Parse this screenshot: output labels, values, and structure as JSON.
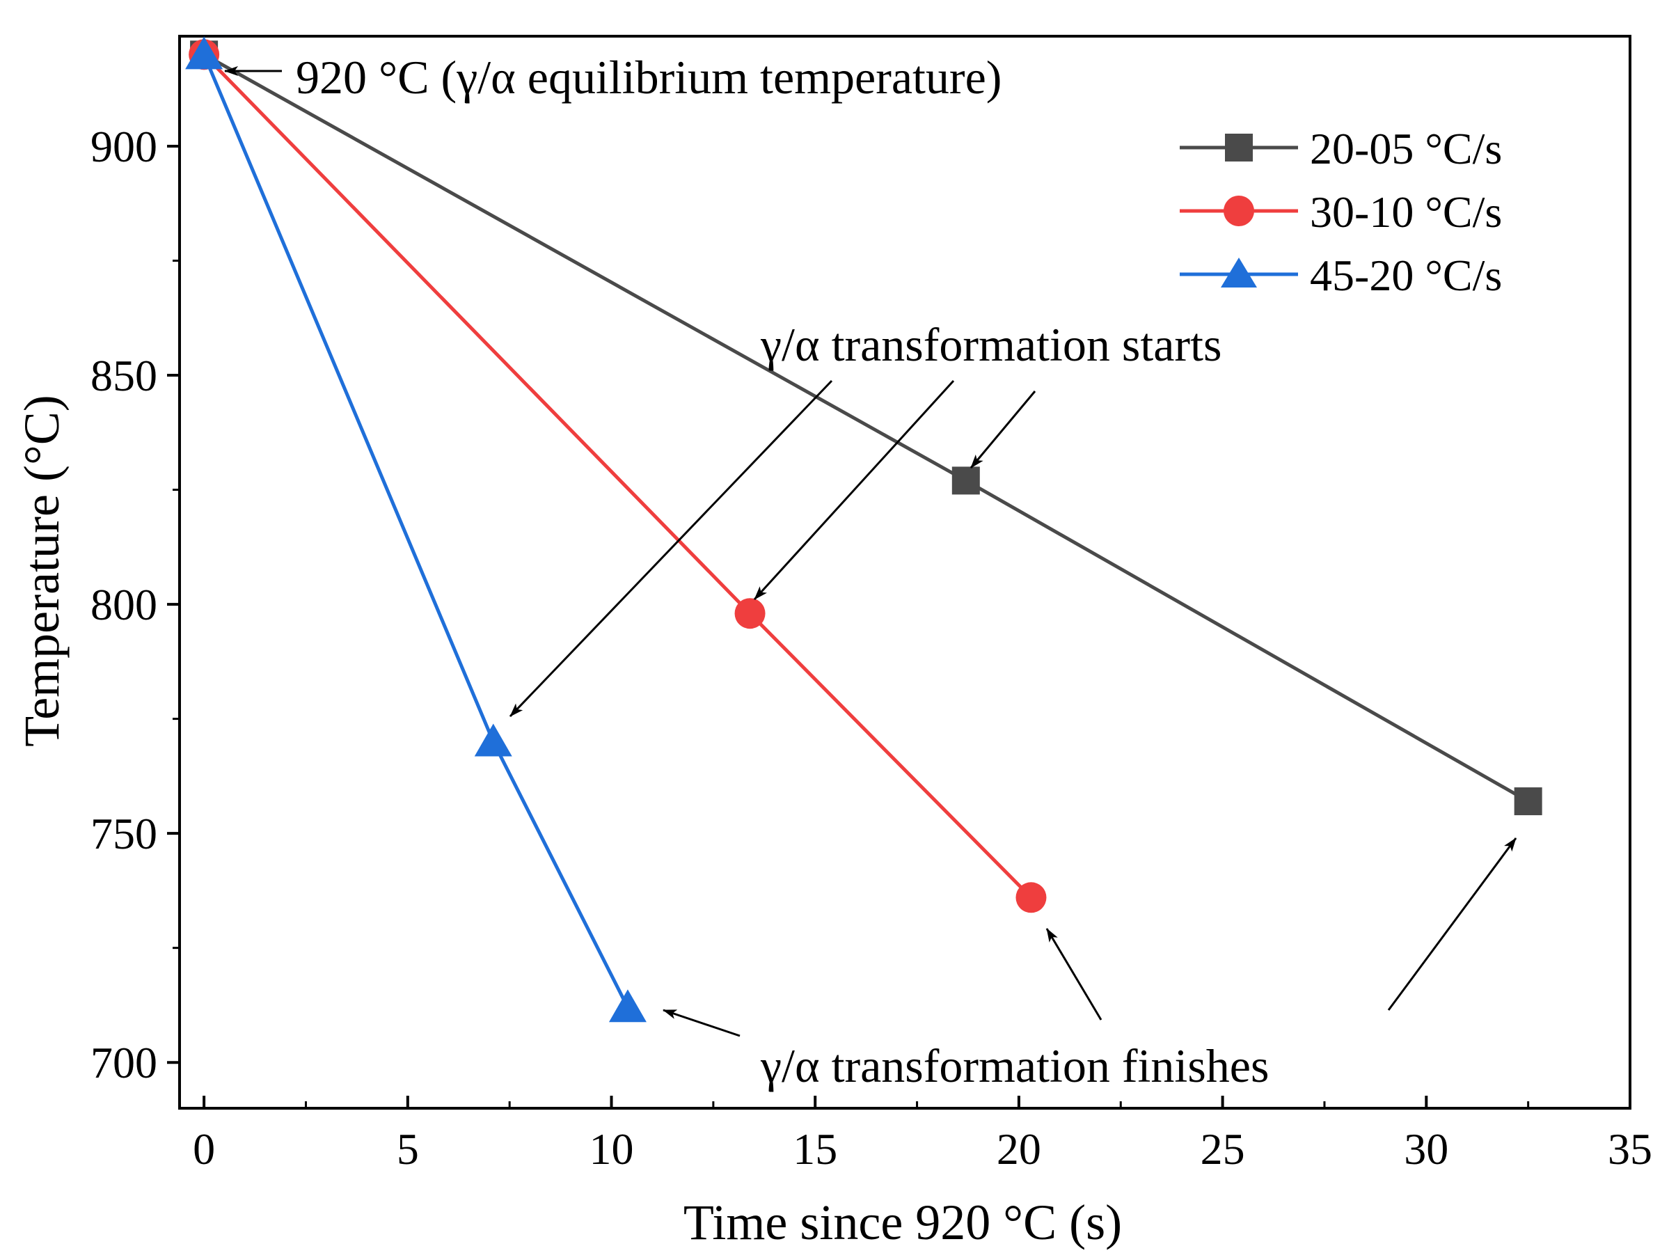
{
  "chart_data": {
    "type": "line",
    "title": "",
    "xlabel": "Time since 920 °C (s)",
    "ylabel": "Temperature (°C)",
    "xlim": [
      -0.6,
      35
    ],
    "ylim": [
      690,
      924
    ],
    "x_ticks": [
      0,
      5,
      10,
      15,
      20,
      25,
      30,
      35
    ],
    "x_tick_labels": [
      "0",
      "5",
      "10",
      "15",
      "20",
      "25",
      "30",
      "35"
    ],
    "x_minor_ticks": [
      2.5,
      7.5,
      12.5,
      17.5,
      22.5,
      27.5,
      32.5
    ],
    "y_ticks": [
      700,
      750,
      800,
      850,
      900
    ],
    "y_tick_labels": [
      "700",
      "750",
      "800",
      "850",
      "900"
    ],
    "y_minor_ticks": [
      725,
      775,
      825,
      875
    ],
    "grid": false,
    "legend_position": "top-right",
    "series": [
      {
        "name": "20-05 °C/s",
        "color": "#4a4a4a",
        "marker": "square",
        "x": [
          0,
          18.7,
          32.5
        ],
        "y": [
          920,
          827,
          757
        ]
      },
      {
        "name": "30-10 °C/s",
        "color": "#ef3e3e",
        "marker": "circle",
        "x": [
          0,
          13.4,
          20.3
        ],
        "y": [
          920,
          798,
          736
        ]
      },
      {
        "name": "45-20 °C/s",
        "color": "#1f6fd9",
        "marker": "triangle",
        "x": [
          0,
          7.1,
          10.4
        ],
        "y": [
          920,
          770,
          712
        ]
      }
    ],
    "annotations": [
      {
        "id": "equilibrium",
        "text": "920 °C (γ/α equilibrium temperature)"
      },
      {
        "id": "starts",
        "text": "γ/α transformation starts"
      },
      {
        "id": "finishes",
        "text": "γ/α transformation finishes"
      }
    ]
  }
}
